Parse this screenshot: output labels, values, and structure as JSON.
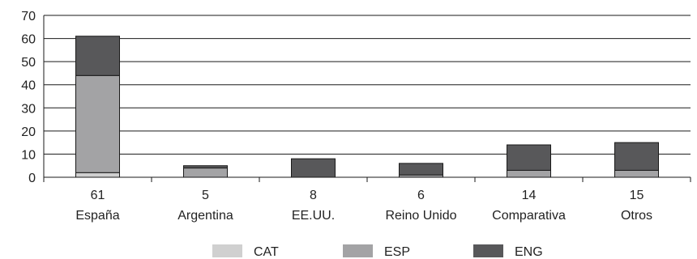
{
  "chart_data": {
    "type": "bar",
    "stacked": true,
    "categories": [
      "España",
      "Argentina",
      "EE.UU.",
      "Reino Unido",
      "Comparativa",
      "Otros"
    ],
    "totals": [
      "61",
      "5",
      "8",
      "6",
      "14",
      "15"
    ],
    "series": [
      {
        "name": "CAT",
        "color": "#d0d0d0",
        "values": [
          2,
          0,
          0,
          0,
          0,
          0
        ]
      },
      {
        "name": "ESP",
        "color": "#a3a3a5",
        "values": [
          42,
          4,
          0,
          1,
          3,
          3
        ]
      },
      {
        "name": "ENG",
        "color": "#58585a",
        "values": [
          17,
          1,
          8,
          5,
          11,
          12
        ]
      }
    ],
    "ylim": [
      0,
      70
    ],
    "yticks": [
      "0",
      "10",
      "20",
      "30",
      "40",
      "50",
      "60",
      "70"
    ],
    "grid": true,
    "legend_position": "bottom"
  }
}
